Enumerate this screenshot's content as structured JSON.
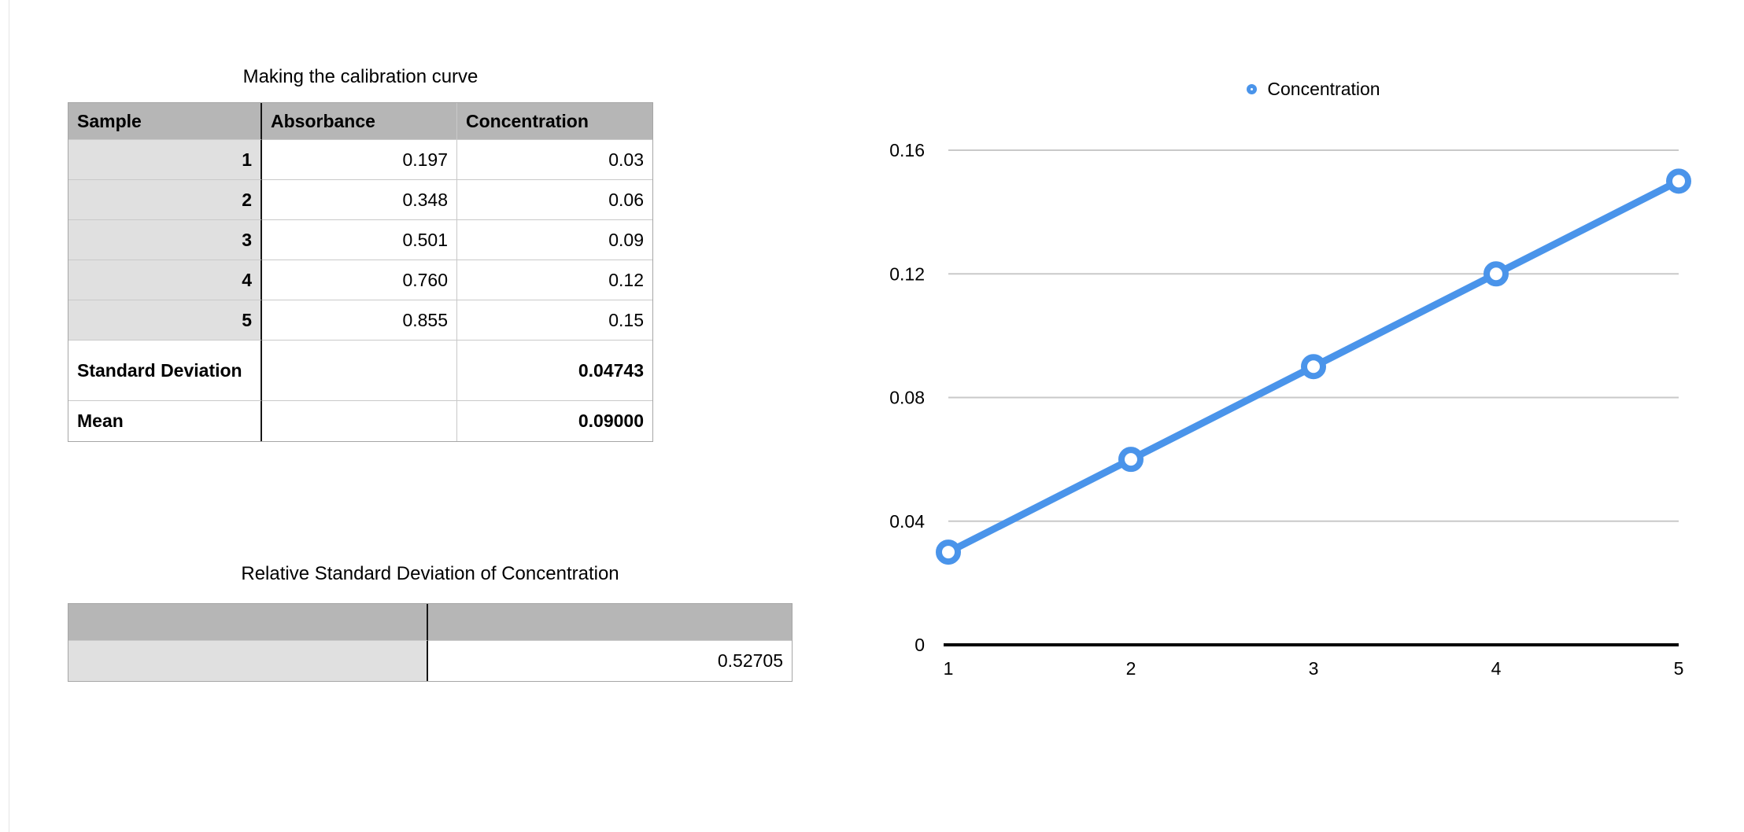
{
  "table1": {
    "title": "Making the calibration curve",
    "headers": [
      "Sample",
      "Absorbance",
      "Concentration"
    ],
    "rows": [
      {
        "sample": "1",
        "absorbance": "0.197",
        "concentration": "0.03"
      },
      {
        "sample": "2",
        "absorbance": "0.348",
        "concentration": "0.06"
      },
      {
        "sample": "3",
        "absorbance": "0.501",
        "concentration": "0.09"
      },
      {
        "sample": "4",
        "absorbance": "0.760",
        "concentration": "0.12"
      },
      {
        "sample": "5",
        "absorbance": "0.855",
        "concentration": "0.15"
      }
    ],
    "summary": [
      {
        "label": "Standard Deviation",
        "absorbance": "",
        "concentration": "0.04743"
      },
      {
        "label": "Mean",
        "absorbance": "",
        "concentration": "0.09000"
      }
    ]
  },
  "table2": {
    "title": "Relative Standard Deviation of Concentration",
    "headers": [
      "",
      ""
    ],
    "row_label": "",
    "value": "0.52705"
  },
  "chart_data": {
    "type": "line",
    "title": "",
    "series": [
      {
        "name": "Concentration",
        "x": [
          1,
          2,
          3,
          4,
          5
        ],
        "values": [
          0.03,
          0.06,
          0.09,
          0.12,
          0.15
        ]
      }
    ],
    "xticks": [
      1,
      2,
      3,
      4,
      5
    ],
    "yticks": [
      0,
      0.04,
      0.08,
      0.12,
      0.16
    ],
    "ytick_labels": [
      "0",
      "0.04",
      "0.08",
      "0.12",
      "0.16"
    ],
    "xlim": [
      1,
      5
    ],
    "ylim": [
      0,
      0.16
    ],
    "xlabel": "",
    "ylabel": "",
    "grid": true,
    "legend_position": "top",
    "line_color": "#4a94ea",
    "marker": "open-circle",
    "axis_color": "#000000",
    "grid_color": "#c9c9c9"
  }
}
